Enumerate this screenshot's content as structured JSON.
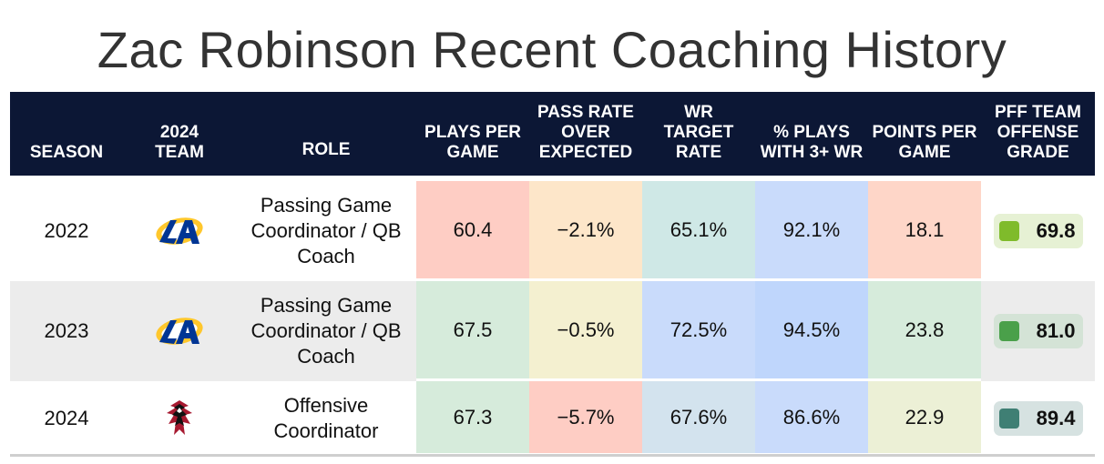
{
  "title": "Zac Robinson Recent Coaching History",
  "headers": {
    "season": "SEASON",
    "team": "2024 TEAM",
    "role": "ROLE",
    "plays": "PLAYS PER GAME",
    "proe": "PASS RATE OVER EXPECTED",
    "wr_target": "WR TARGET RATE",
    "pct3wr": "% PLAYS WITH 3+ WR",
    "points": "POINTS PER GAME",
    "grade": "PFF TEAM OFFENSE GRADE"
  },
  "chart_data": {
    "type": "table",
    "columns": [
      "SEASON",
      "2024 TEAM",
      "ROLE",
      "PLAYS PER GAME",
      "PASS RATE OVER EXPECTED",
      "WR TARGET RATE",
      "% PLAYS WITH 3+ WR",
      "POINTS PER GAME",
      "PFF TEAM OFFENSE GRADE"
    ],
    "rows": [
      {
        "season": "2022",
        "team_logo": "rams-logo",
        "role": "Passing Game Coordinator / QB Coach",
        "plays": "60.4",
        "proe": "−2.1%",
        "wr_target": "65.1%",
        "pct3wr": "92.1%",
        "points": "18.1",
        "grade": "69.8",
        "colors": {
          "plays": "#fecdc4",
          "proe": "#fde6c9",
          "wr_target": "#cfe8e6",
          "pct3wr": "#c9dbfb",
          "points": "#fed6c8",
          "grade_bg": "#e6f1d4",
          "grade_sq": "#7fbb2b"
        }
      },
      {
        "season": "2023",
        "team_logo": "rams-logo",
        "role": "Passing Game Coordinator / QB Coach",
        "plays": "67.5",
        "proe": "−0.5%",
        "wr_target": "72.5%",
        "pct3wr": "94.5%",
        "points": "23.8",
        "grade": "81.0",
        "colors": {
          "plays": "#d6ebdb",
          "proe": "#f4f0d0",
          "wr_target": "#c9dbfb",
          "pct3wr": "#bfd6fc",
          "points": "#d6ebdb",
          "grade_bg": "#d4e3d6",
          "grade_sq": "#4aa04a"
        }
      },
      {
        "season": "2024",
        "team_logo": "falcons-logo",
        "role": "Offensive Coordinator",
        "plays": "67.3",
        "proe": "−5.7%",
        "wr_target": "67.6%",
        "pct3wr": "86.6%",
        "points": "22.9",
        "grade": "89.4",
        "colors": {
          "plays": "#d6ebdb",
          "proe": "#fecdc4",
          "wr_target": "#d3e3ee",
          "pct3wr": "#c9dbfb",
          "points": "#ecf0d6",
          "grade_bg": "#d6e2e1",
          "grade_sq": "#3f7f74"
        }
      }
    ]
  }
}
